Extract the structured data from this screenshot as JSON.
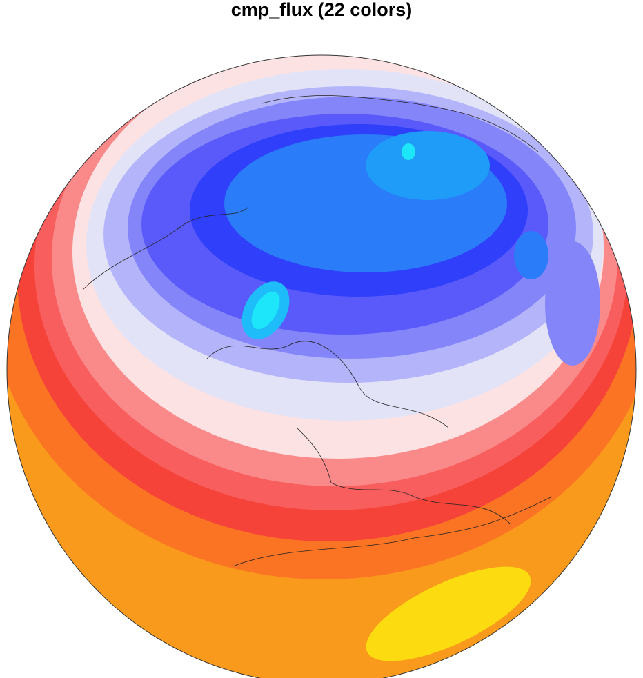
{
  "title": "cmp_flux (22 colors)"
}
